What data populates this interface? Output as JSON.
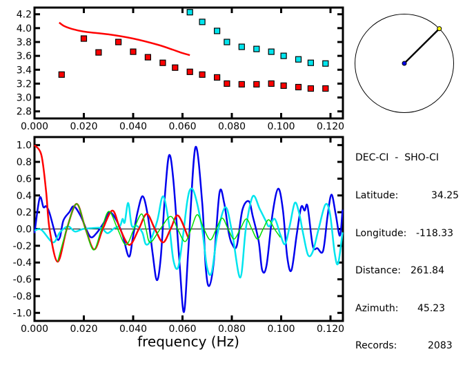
{
  "chart_data": [
    {
      "type": "scatter",
      "xlim": [
        0.0,
        0.125
      ],
      "ylim": [
        2.7,
        4.3
      ],
      "x_ticks": [
        "0.000",
        "0.020",
        "0.040",
        "0.060",
        "0.080",
        "0.100",
        "0.120"
      ],
      "y_ticks": [
        "2.8",
        "3.0",
        "3.2",
        "3.4",
        "3.6",
        "3.8",
        "4.0",
        "4.2"
      ],
      "series": [
        {
          "color": "#ff0000",
          "style": "square-markers",
          "x": [
            0.011,
            0.02,
            0.026,
            0.034,
            0.04,
            0.046,
            0.052,
            0.057,
            0.063,
            0.068,
            0.074,
            0.078,
            0.084,
            0.09,
            0.096,
            0.101,
            0.107,
            0.112,
            0.118
          ],
          "y": [
            3.33,
            3.85,
            3.65,
            3.8,
            3.66,
            3.58,
            3.5,
            3.43,
            3.37,
            3.33,
            3.29,
            3.2,
            3.19,
            3.19,
            3.2,
            3.17,
            3.15,
            3.13,
            3.13
          ]
        },
        {
          "color": "#00e5ee",
          "style": "square-markers",
          "x": [
            0.063,
            0.068,
            0.074,
            0.078,
            0.084,
            0.09,
            0.096,
            0.101,
            0.107,
            0.112,
            0.118
          ],
          "y": [
            4.23,
            4.09,
            3.96,
            3.8,
            3.73,
            3.7,
            3.66,
            3.6,
            3.55,
            3.5,
            3.49
          ]
        },
        {
          "color": "#ff0000",
          "style": "line",
          "x": [
            0.01,
            0.012,
            0.015,
            0.02,
            0.03,
            0.04,
            0.05,
            0.056,
            0.06,
            0.063
          ],
          "y": [
            4.08,
            4.03,
            3.99,
            3.95,
            3.91,
            3.85,
            3.76,
            3.69,
            3.64,
            3.61
          ]
        }
      ]
    },
    {
      "type": "line",
      "xlabel": "frequency (Hz)",
      "xlim": [
        0.0,
        0.125
      ],
      "ylim": [
        -1.1,
        1.1
      ],
      "x_ticks": [
        "0.000",
        "0.020",
        "0.040",
        "0.060",
        "0.080",
        "0.100",
        "0.120"
      ],
      "y_ticks": [
        "1.0",
        "0.8",
        "0.6",
        "0.4",
        "0.2",
        "0.0",
        "-0.2",
        "-0.4",
        "-0.6",
        "-0.8",
        "-1.0"
      ],
      "zero_line": true,
      "series": [
        {
          "color": "#0000ee",
          "x": [
            0,
            0.0021,
            0.0036,
            0.0047,
            0.0061,
            0.0089,
            0.0103,
            0.0117,
            0.0141,
            0.016,
            0.0188,
            0.0211,
            0.023,
            0.0254,
            0.0282,
            0.0305,
            0.0333,
            0.0357,
            0.0383,
            0.0399,
            0.0418,
            0.0439,
            0.046,
            0.0479,
            0.0496,
            0.0512,
            0.053,
            0.0546,
            0.0563,
            0.0587,
            0.0606,
            0.0624,
            0.0652,
            0.068,
            0.0694,
            0.0708,
            0.0727,
            0.075,
            0.0769,
            0.0787,
            0.0801,
            0.082,
            0.0843,
            0.0869,
            0.0885,
            0.0909,
            0.0923,
            0.0941,
            0.0965,
            0.0988,
            0.1007,
            0.1025,
            0.1042,
            0.1063,
            0.1081,
            0.1095,
            0.1107,
            0.1128,
            0.1147,
            0.117,
            0.1188,
            0.1204,
            0.1221,
            0.1238,
            0.1249
          ],
          "y": [
            -0.05,
            0.37,
            0.26,
            0.27,
            0.19,
            -0.1,
            -0.1,
            0.1,
            0.2,
            0.27,
            0.15,
            -0.01,
            -0.1,
            -0.04,
            0.08,
            0.2,
            0.1,
            -0.07,
            -0.33,
            -0.1,
            0.2,
            0.39,
            0.15,
            -0.29,
            -0.61,
            -0.34,
            0.45,
            0.88,
            0.58,
            -0.37,
            -0.99,
            -0.23,
            0.97,
            0.31,
            -0.45,
            -0.68,
            -0.39,
            0.43,
            0.31,
            -0.04,
            -0.18,
            -0.2,
            0.23,
            0.33,
            0.15,
            -0.15,
            -0.49,
            -0.43,
            0.18,
            0.48,
            0.23,
            -0.34,
            -0.49,
            -0.07,
            0.26,
            0.22,
            0.27,
            -0.2,
            -0.23,
            -0.26,
            0.15,
            0.41,
            0.18,
            -0.08,
            0.23
          ]
        },
        {
          "color": "#00e5ee",
          "x": [
            0,
            0.0028,
            0.0075,
            0.0103,
            0.0136,
            0.0164,
            0.0197,
            0.0235,
            0.0272,
            0.0296,
            0.0324,
            0.0347,
            0.0357,
            0.0366,
            0.038,
            0.0394,
            0.0413,
            0.0437,
            0.0451,
            0.047,
            0.0498,
            0.0521,
            0.0545,
            0.0563,
            0.0582,
            0.0601,
            0.062,
            0.0634,
            0.0652,
            0.068,
            0.0699,
            0.0718,
            0.0741,
            0.0774,
            0.0801,
            0.0834,
            0.0857,
            0.0885,
            0.0913,
            0.0937,
            0.0951,
            0.0974,
            0.0997,
            0.1016,
            0.1035,
            0.1055,
            0.1072,
            0.109,
            0.1109,
            0.1128,
            0.1151,
            0.1179,
            0.1198,
            0.1217,
            0.1231,
            0.1249
          ],
          "y": [
            -0.02,
            -0.01,
            -0.16,
            -0.04,
            0.03,
            -0.03,
            0,
            0.01,
            0.01,
            -0.05,
            0.01,
            0.04,
            0.12,
            0.08,
            0.31,
            0.04,
            0.04,
            -0.04,
            -0.18,
            -0.14,
            0.1,
            0.39,
            0.07,
            -0.37,
            -0.46,
            -0.1,
            0.34,
            0.48,
            0.39,
            -0.01,
            -0.45,
            -0.52,
            -0.07,
            0.26,
            -0.04,
            -0.58,
            0.01,
            0.39,
            0.24,
            0.1,
            0.03,
            0.12,
            -0.07,
            -0.18,
            0.04,
            0.31,
            0.2,
            -0.07,
            -0.31,
            -0.27,
            -0.01,
            0.29,
            0.18,
            -0.29,
            -0.41,
            -0.04
          ]
        },
        {
          "color": "#ff0000",
          "x": [
            0,
            0.0028,
            0.0047,
            0.0061,
            0.0094,
            0.0131,
            0.0171,
            0.0207,
            0.0242,
            0.0277,
            0.0316,
            0.0347,
            0.0385,
            0.0423,
            0.0455,
            0.0488,
            0.0521,
            0.0552,
            0.0582,
            0.0624
          ],
          "y": [
            1.0,
            0.88,
            0.45,
            0,
            -0.39,
            0,
            0.3,
            0,
            -0.245,
            0,
            0.22,
            0,
            -0.19,
            0,
            0.18,
            0,
            -0.16,
            0,
            0.16,
            -0.11
          ]
        },
        {
          "color": "#00dd00",
          "x": [
            0.0094,
            0.0131,
            0.0171,
            0.0207,
            0.024,
            0.0272,
            0.0302,
            0.0337,
            0.0371,
            0.0403,
            0.0434,
            0.0452,
            0.0469,
            0.051,
            0.0552,
            0.058,
            0.061,
            0.0635,
            0.066,
            0.0687,
            0.0713,
            0.0737,
            0.0761,
            0.0785,
            0.0809,
            0.0834,
            0.0859,
            0.0881,
            0.0904,
            0.0927,
            0.0949,
            0.0973,
            0.0997
          ],
          "y": [
            -0.39,
            0,
            0.3,
            0,
            -0.25,
            0,
            0.21,
            0,
            -0.19,
            0,
            0.18,
            0,
            -0.16,
            0,
            0.15,
            0,
            -0.15,
            0,
            0.17,
            0,
            -0.13,
            0,
            0.13,
            0,
            -0.12,
            0,
            0.12,
            0,
            -0.12,
            0,
            0.11,
            0,
            -0.1
          ]
        }
      ]
    }
  ],
  "map": {
    "azimuth_deg": 45.23
  },
  "info": {
    "pair": "DEC-CI  -  SHO-CI",
    "rows": [
      {
        "label": "Latitude:",
        "value": "34.25"
      },
      {
        "label": "Longitude:",
        "value": "-118.33"
      },
      {
        "label": "Distance:",
        "value": "261.84"
      },
      {
        "label": "Azimuth:",
        "value": "45.23"
      },
      {
        "label": "Records:",
        "value": "2083"
      }
    ]
  }
}
